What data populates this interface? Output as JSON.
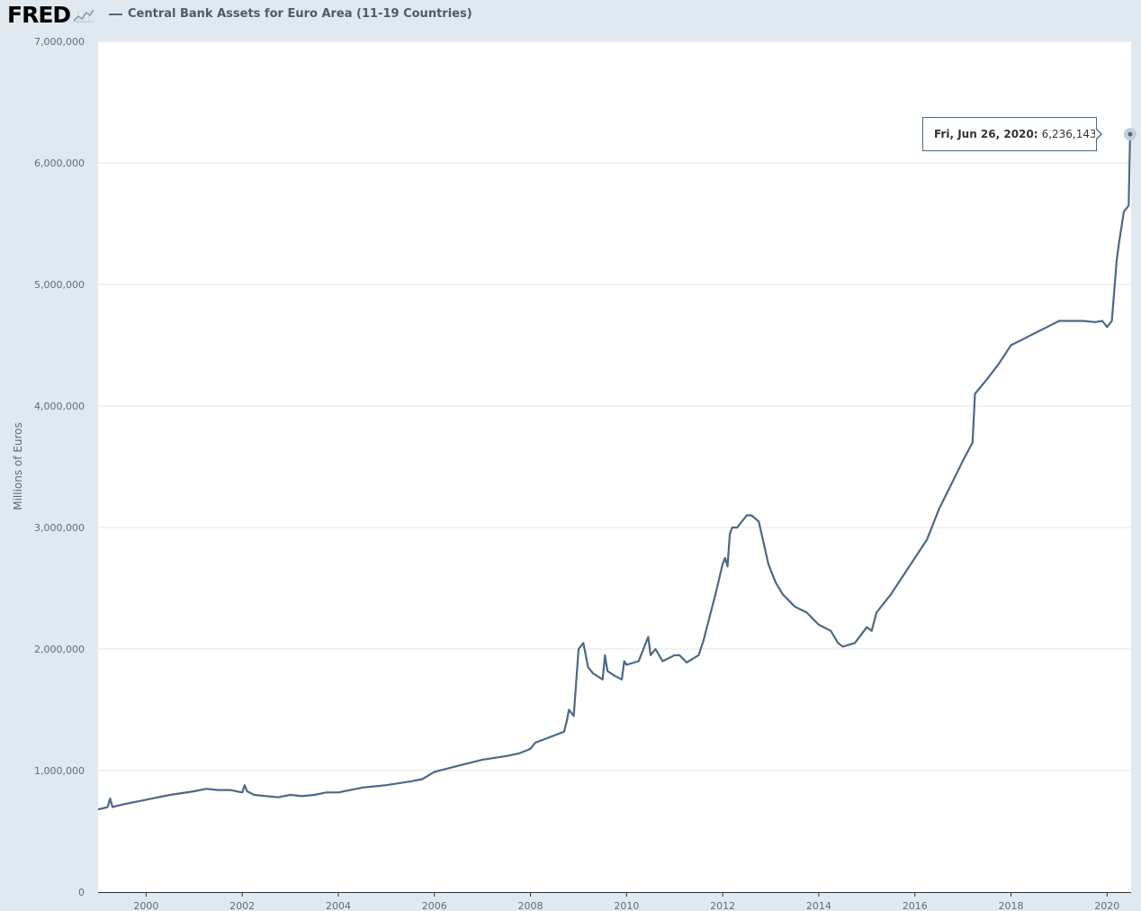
{
  "header": {
    "logo_text": "FRED",
    "logo_icon": "trend-line-icon",
    "legend_label": "Central Bank Assets for Euro Area (11-19 Countries)"
  },
  "tooltip": {
    "date": "Fri, Jun 26, 2020:",
    "value": "6,236,143"
  },
  "colors": {
    "line": "#4b6987",
    "background": "#e1e9f0",
    "plot": "#ffffff",
    "grid": "#e6e6e6"
  },
  "chart_data": {
    "type": "line",
    "title": "Central Bank Assets for Euro Area (11-19 Countries)",
    "xlabel": "",
    "ylabel": "Millions of Euros",
    "xlim": [
      1999.0,
      2020.5
    ],
    "ylim": [
      0,
      7000000
    ],
    "yticks": [
      0,
      1000000,
      2000000,
      3000000,
      4000000,
      5000000,
      6000000,
      7000000
    ],
    "ytick_labels": [
      "0",
      "1,000,000",
      "2,000,000",
      "3,000,000",
      "4,000,000",
      "5,000,000",
      "6,000,000",
      "7,000,000"
    ],
    "xticks": [
      2000,
      2002,
      2004,
      2006,
      2008,
      2010,
      2012,
      2014,
      2016,
      2018,
      2020
    ],
    "xtick_labels": [
      "2000",
      "2002",
      "2004",
      "2006",
      "2008",
      "2010",
      "2012",
      "2014",
      "2016",
      "2018",
      "2020"
    ],
    "grid": true,
    "series": [
      {
        "name": "Central Bank Assets for Euro Area (11-19 Countries)",
        "x": [
          1999.0,
          1999.1,
          1999.2,
          1999.25,
          1999.3,
          1999.5,
          1999.75,
          2000.0,
          2000.25,
          2000.5,
          2001.0,
          2001.25,
          2001.5,
          2001.75,
          2002.0,
          2002.05,
          2002.1,
          2002.25,
          2002.5,
          2002.75,
          2003.0,
          2003.25,
          2003.5,
          2003.75,
          2004.0,
          2004.5,
          2005.0,
          2005.5,
          2005.75,
          2006.0,
          2006.5,
          2007.0,
          2007.5,
          2007.75,
          2007.95,
          2008.0,
          2008.1,
          2008.5,
          2008.7,
          2008.75,
          2008.8,
          2008.9,
          2009.0,
          2009.1,
          2009.2,
          2009.3,
          2009.5,
          2009.55,
          2009.6,
          2009.75,
          2009.9,
          2009.95,
          2010.0,
          2010.25,
          2010.45,
          2010.5,
          2010.6,
          2010.75,
          2011.0,
          2011.1,
          2011.25,
          2011.5,
          2011.6,
          2011.75,
          2011.85,
          2012.0,
          2012.05,
          2012.1,
          2012.15,
          2012.2,
          2012.3,
          2012.5,
          2012.6,
          2012.75,
          2012.95,
          2013.0,
          2013.1,
          2013.25,
          2013.5,
          2013.75,
          2014.0,
          2014.25,
          2014.4,
          2014.5,
          2014.75,
          2015.0,
          2015.1,
          2015.2,
          2015.3,
          2015.5,
          2015.75,
          2016.0,
          2016.25,
          2016.5,
          2016.75,
          2017.0,
          2017.2,
          2017.25,
          2017.5,
          2017.75,
          2018.0,
          2018.25,
          2018.5,
          2018.75,
          2019.0,
          2019.25,
          2019.5,
          2019.75,
          2019.9,
          2020.0,
          2020.1,
          2020.2,
          2020.25,
          2020.35,
          2020.45,
          2020.48
        ],
        "values": [
          680000,
          690000,
          700000,
          770000,
          700000,
          720000,
          740000,
          760000,
          780000,
          800000,
          830000,
          850000,
          840000,
          840000,
          820000,
          880000,
          830000,
          800000,
          790000,
          780000,
          800000,
          790000,
          800000,
          820000,
          820000,
          860000,
          880000,
          910000,
          930000,
          990000,
          1040000,
          1090000,
          1120000,
          1140000,
          1170000,
          1180000,
          1230000,
          1290000,
          1320000,
          1400000,
          1500000,
          1450000,
          2000000,
          2050000,
          1850000,
          1800000,
          1750000,
          1950000,
          1820000,
          1780000,
          1750000,
          1900000,
          1870000,
          1900000,
          2100000,
          1950000,
          2000000,
          1900000,
          1950000,
          1950000,
          1890000,
          1950000,
          2070000,
          2300000,
          2450000,
          2700000,
          2750000,
          2680000,
          2950000,
          3000000,
          3000000,
          3100000,
          3100000,
          3050000,
          2700000,
          2650000,
          2550000,
          2450000,
          2350000,
          2300000,
          2200000,
          2150000,
          2050000,
          2020000,
          2050000,
          2180000,
          2150000,
          2300000,
          2350000,
          2450000,
          2600000,
          2750000,
          2900000,
          3150000,
          3350000,
          3550000,
          3700000,
          4100000,
          4220000,
          4350000,
          4500000,
          4550000,
          4600000,
          4650000,
          4700000,
          4700000,
          4700000,
          4690000,
          4700000,
          4650000,
          4700000,
          5200000,
          5350000,
          5600000,
          5650000,
          6236143
        ]
      }
    ]
  }
}
